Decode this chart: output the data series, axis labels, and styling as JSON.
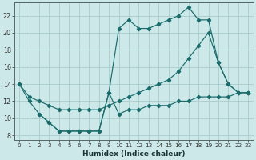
{
  "xlabel": "Humidex (Indice chaleur)",
  "bg_color": "#cce8e8",
  "grid_color": "#aacccc",
  "line_color": "#1a6b6b",
  "xlim": [
    -0.5,
    23.5
  ],
  "ylim": [
    7.5,
    23.5
  ],
  "yticks": [
    8,
    10,
    12,
    14,
    16,
    18,
    20,
    22
  ],
  "xticks": [
    0,
    1,
    2,
    3,
    4,
    5,
    6,
    7,
    8,
    9,
    10,
    11,
    12,
    13,
    14,
    15,
    16,
    17,
    18,
    19,
    20,
    21,
    22,
    23
  ],
  "line1_x": [
    0,
    1,
    2,
    3,
    4,
    5,
    6,
    7,
    8,
    9,
    10,
    11,
    12,
    13,
    14,
    15,
    16,
    17,
    18,
    19,
    20,
    21,
    22,
    23
  ],
  "line1_y": [
    14,
    12,
    10.5,
    9.5,
    8.5,
    8.5,
    8.5,
    8.5,
    8.5,
    13,
    20.5,
    21.5,
    20.5,
    20.5,
    21,
    21.5,
    22,
    23,
    21.5,
    21.5,
    16.5,
    14,
    13,
    13
  ],
  "line2_x": [
    0,
    1,
    2,
    3,
    4,
    5,
    6,
    7,
    8,
    9,
    10,
    11,
    12,
    13,
    14,
    15,
    16,
    17,
    18,
    19,
    20,
    21,
    22,
    23
  ],
  "line2_y": [
    14,
    12.5,
    12,
    11.5,
    11,
    11,
    11,
    11,
    11,
    11.5,
    12,
    12.5,
    13,
    13.5,
    14,
    14.5,
    15.5,
    17,
    18.5,
    20,
    16.5,
    14,
    13,
    13
  ],
  "line3_x": [
    2,
    3,
    4,
    5,
    6,
    7,
    8,
    9,
    10,
    11,
    12,
    13,
    14,
    15,
    16,
    17,
    18,
    19,
    20,
    21,
    22,
    23
  ],
  "line3_y": [
    10.5,
    9.5,
    8.5,
    8.5,
    8.5,
    8.5,
    8.5,
    13,
    10.5,
    11,
    11,
    11.5,
    11.5,
    11.5,
    12,
    12,
    12.5,
    12.5,
    12.5,
    12.5,
    13,
    13
  ]
}
